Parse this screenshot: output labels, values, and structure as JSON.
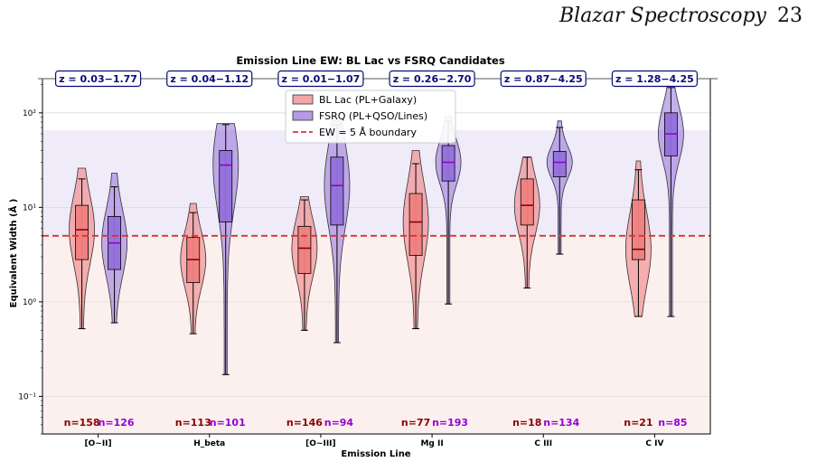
{
  "header": {
    "running_title": "Blazar Spectroscopy",
    "page_number": "23"
  },
  "colors": {
    "bl_lac": "#f08080",
    "fsrq": "#9370db",
    "boundary": "#e03030",
    "bl_median": "#8b0000",
    "fsrq_median": "#9400d3",
    "bl_count": "#8b0000",
    "fsrq_count": "#9400d3",
    "zbox_border": "#0a0a7a"
  },
  "chart_data": {
    "type": "violin",
    "title": "Emission Line EW: BL Lac vs FSRQ Candidates",
    "xlabel": "Emission Line",
    "ylabel": "Equivalent Width (Å )",
    "yscale": "log",
    "ylim": [
      0.04,
      230
    ],
    "yticks": [
      {
        "value": 0.1,
        "label": "10⁻¹"
      },
      {
        "value": 1,
        "label": "10⁰"
      },
      {
        "value": 10,
        "label": "10¹"
      },
      {
        "value": 100,
        "label": "10²"
      }
    ],
    "boundary": 5,
    "regions": [
      {
        "from": 5,
        "to": 230,
        "class": "fsrq"
      },
      {
        "from": 0.04,
        "to": 5,
        "class": "bl_lac"
      }
    ],
    "legend": {
      "position": "top-center",
      "entries": [
        {
          "label": "BL Lac (PL+Galaxy)",
          "key": "bl_lac"
        },
        {
          "label": "FSRQ (PL+QSO/Lines)",
          "key": "fsrq"
        },
        {
          "label": "EW = 5 Å boundary",
          "key": "boundary"
        }
      ]
    },
    "categories": [
      {
        "label": "[O~II]",
        "z_range": "z = 0.03−1.77",
        "bl_lac": {
          "n": "n=158",
          "min": 0.52,
          "q1": 2.8,
          "median": 5.8,
          "q3": 10.5,
          "max": 20,
          "vmin": 0.52,
          "vmax": 26
        },
        "fsrq": {
          "n": "n=126",
          "min": 0.6,
          "q1": 2.2,
          "median": 4.2,
          "q3": 8,
          "max": 16.5,
          "vmin": 0.6,
          "vmax": 23
        }
      },
      {
        "label": "H_beta",
        "z_range": "z = 0.04−1.12",
        "bl_lac": {
          "n": "n=113",
          "min": 0.46,
          "q1": 1.6,
          "median": 2.8,
          "q3": 4.8,
          "max": 8.8,
          "vmin": 0.46,
          "vmax": 11
        },
        "fsrq": {
          "n": "n=101",
          "min": 0.17,
          "q1": 7,
          "median": 28,
          "q3": 40,
          "max": 75,
          "vmin": 0.17,
          "vmax": 77
        }
      },
      {
        "label": "[O~III]",
        "z_range": "z = 0.01−1.07",
        "bl_lac": {
          "n": "n=146",
          "min": 0.5,
          "q1": 2,
          "median": 3.7,
          "q3": 6.3,
          "max": 12,
          "vmin": 0.5,
          "vmax": 13
        },
        "fsrq": {
          "n": "n=94",
          "min": 0.37,
          "q1": 6.5,
          "median": 17,
          "q3": 34,
          "max": 75,
          "vmin": 0.37,
          "vmax": 83
        }
      },
      {
        "label": "Mg II",
        "z_range": "z = 0.26−2.70",
        "bl_lac": {
          "n": "n=77",
          "min": 0.52,
          "q1": 3.1,
          "median": 7,
          "q3": 14,
          "max": 29,
          "vmin": 0.52,
          "vmax": 40
        },
        "fsrq": {
          "n": "n=193",
          "min": 0.95,
          "q1": 19,
          "median": 30,
          "q3": 45,
          "max": 82,
          "vmin": 0.95,
          "vmax": 92
        }
      },
      {
        "label": "C III",
        "z_range": "z = 0.87−4.25",
        "bl_lac": {
          "n": "n=18",
          "min": 1.4,
          "q1": 6.5,
          "median": 10.5,
          "q3": 20,
          "max": 34,
          "vmin": 1.4,
          "vmax": 34
        },
        "fsrq": {
          "n": "n=134",
          "min": 3.2,
          "q1": 21,
          "median": 30,
          "q3": 39,
          "max": 70,
          "vmin": 3.2,
          "vmax": 82
        }
      },
      {
        "label": "C IV",
        "z_range": "z = 1.28−4.25",
        "bl_lac": {
          "n": "n=21",
          "min": 0.7,
          "q1": 2.8,
          "median": 3.6,
          "q3": 12,
          "max": 25,
          "vmin": 0.7,
          "vmax": 31
        },
        "fsrq": {
          "n": "n=85",
          "min": 0.7,
          "q1": 35,
          "median": 60,
          "q3": 100,
          "max": 185,
          "vmin": 0.7,
          "vmax": 210
        }
      }
    ]
  }
}
